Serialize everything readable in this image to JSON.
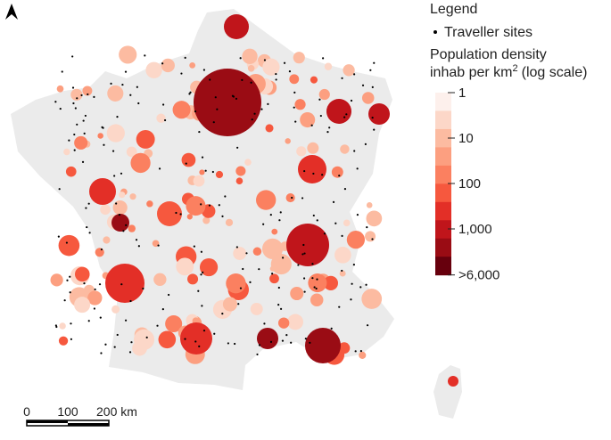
{
  "legend": {
    "title": "Legend",
    "sites_label": "Traveller sites",
    "density_title": "Population density",
    "density_unit": "inhab per km",
    "density_unit_exponent": "2",
    "density_scale_note": "(log scale)",
    "color_scale": {
      "log": true,
      "lim": [
        1,
        6000
      ],
      "ticks": [
        1,
        10,
        100,
        {
          "value": 1000,
          "label": "1,000"
        },
        {
          "value": 6000,
          "label": ">6,000"
        }
      ],
      "colors": [
        "#fdf0ec",
        "#fcd7c8",
        "#fcbba1",
        "#fc9f80",
        "#fb8060",
        "#f6583e",
        "#e32f27",
        "#c0151b",
        "#9a0c14",
        "#67000d"
      ]
    }
  },
  "scale_bar": {
    "labels": [
      "0",
      "100",
      "200 km"
    ]
  }
}
